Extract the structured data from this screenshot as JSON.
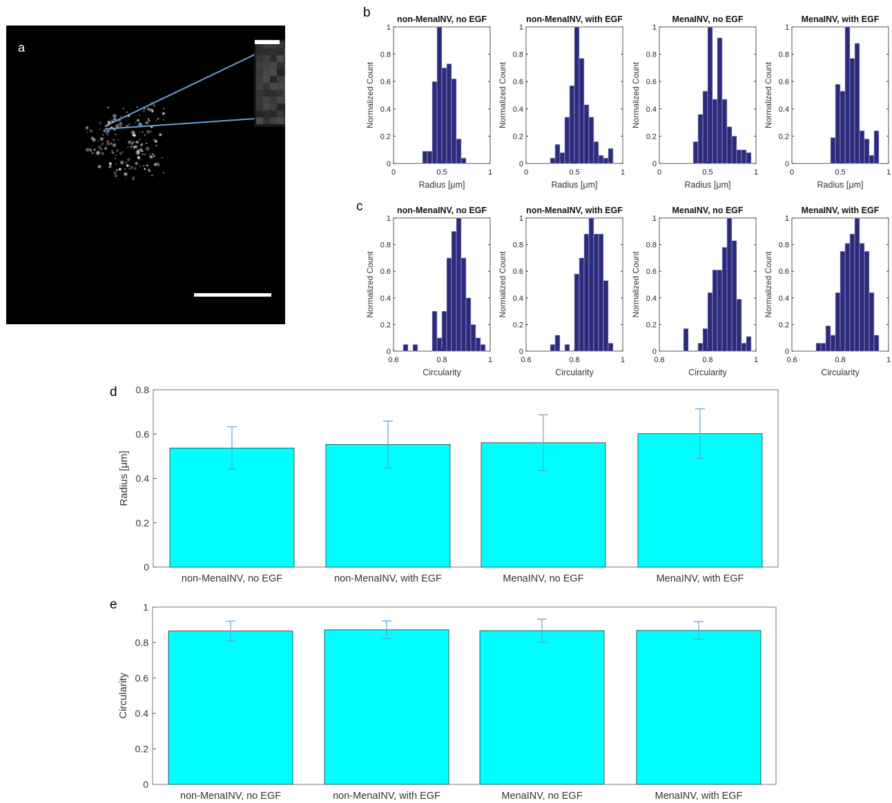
{
  "panels": {
    "a": "a",
    "b": "b",
    "c": "c",
    "d": "d",
    "e": "e"
  },
  "colors": {
    "hist_bar": "#2b2a7c",
    "hist_edge": "#b6b6d6",
    "summary_bar": "#00ffff",
    "error_bar": "#5aa0d8",
    "zoom_line": "#6a9fd8",
    "outline": "#c7c74a"
  },
  "chart_data": [
    {
      "id": "b1",
      "type": "bar",
      "panel": "b",
      "title": "non-MenaINV, no EGF",
      "xlabel": "Radius [μm]",
      "ylabel": "Normalized Count",
      "xlim": [
        0,
        1
      ],
      "ylim": [
        0,
        1
      ],
      "xticks": [
        "0",
        "0.5",
        "1"
      ],
      "yticks": [
        "0",
        "0.2",
        "0.4",
        "0.6",
        "0.8",
        "1"
      ],
      "bin_width": 0.05,
      "bins": [
        0.3,
        0.35,
        0.4,
        0.45,
        0.5,
        0.55,
        0.6,
        0.65,
        0.7,
        0.75
      ],
      "values": [
        0.09,
        0.09,
        0.6,
        1.0,
        0.7,
        0.73,
        0.62,
        0.18,
        0.04,
        0.0
      ]
    },
    {
      "id": "b2",
      "type": "bar",
      "panel": "b",
      "title": "non-MenaINV, with EGF",
      "xlabel": "Radius [μm]",
      "ylabel": "Normalized Count",
      "xlim": [
        0,
        1
      ],
      "ylim": [
        0,
        1
      ],
      "xticks": [
        "0",
        "0.5",
        "1"
      ],
      "yticks": [
        "0",
        "0.2",
        "0.4",
        "0.6",
        "0.8",
        "1"
      ],
      "bin_width": 0.05,
      "bins": [
        0.25,
        0.3,
        0.35,
        0.4,
        0.45,
        0.5,
        0.55,
        0.6,
        0.65,
        0.7,
        0.75,
        0.8,
        0.85
      ],
      "values": [
        0.04,
        0.14,
        0.08,
        0.34,
        0.57,
        1.0,
        0.77,
        0.43,
        0.34,
        0.16,
        0.06,
        0.04,
        0.11
      ]
    },
    {
      "id": "b3",
      "type": "bar",
      "panel": "b",
      "title": "MenaINV, no EGF",
      "xlabel": "Radius [μm]",
      "ylabel": "Normalized Count",
      "xlim": [
        0,
        1
      ],
      "ylim": [
        0,
        1
      ],
      "xticks": [
        "0",
        "0.5",
        "1"
      ],
      "yticks": [
        "0",
        "0.2",
        "0.4",
        "0.6",
        "0.8",
        "1"
      ],
      "bin_width": 0.05,
      "bins": [
        0.3,
        0.35,
        0.4,
        0.45,
        0.5,
        0.55,
        0.6,
        0.65,
        0.7,
        0.75,
        0.8,
        0.85,
        0.9
      ],
      "values": [
        0.0,
        0.16,
        0.36,
        0.53,
        1.0,
        0.47,
        0.92,
        0.47,
        0.27,
        0.2,
        0.1,
        0.1,
        0.08
      ]
    },
    {
      "id": "b4",
      "type": "bar",
      "panel": "b",
      "title": "MenaINV, with EGF",
      "xlabel": "Radius [μm]",
      "ylabel": "Normalized Count",
      "xlim": [
        0,
        1
      ],
      "ylim": [
        0,
        1
      ],
      "xticks": [
        "0",
        "0.5",
        "1"
      ],
      "yticks": [
        "0",
        "0.2",
        "0.4",
        "0.6",
        "0.8",
        "1"
      ],
      "bin_width": 0.05,
      "bins": [
        0.35,
        0.4,
        0.45,
        0.5,
        0.55,
        0.6,
        0.65,
        0.7,
        0.75,
        0.8,
        0.85,
        0.9
      ],
      "values": [
        0.0,
        0.19,
        0.58,
        0.53,
        1.0,
        0.77,
        0.88,
        0.24,
        0.18,
        0.06,
        0.24,
        0.0
      ]
    },
    {
      "id": "c1",
      "type": "bar",
      "panel": "c",
      "title": "non-MenaINV, no EGF",
      "xlabel": "Circularity",
      "ylabel": "Normalized Count",
      "xlim": [
        0.6,
        1
      ],
      "ylim": [
        0,
        1
      ],
      "xticks": [
        "0.6",
        "0.8",
        "1"
      ],
      "yticks": [
        "0",
        "0.2",
        "0.4",
        "0.6",
        "0.8",
        "1"
      ],
      "bin_width": 0.02,
      "bins": [
        0.62,
        0.64,
        0.66,
        0.68,
        0.7,
        0.72,
        0.74,
        0.76,
        0.78,
        0.8,
        0.82,
        0.84,
        0.86,
        0.88,
        0.9,
        0.92,
        0.94,
        0.96,
        0.98
      ],
      "values": [
        0.0,
        0.05,
        0.0,
        0.05,
        0.0,
        0.0,
        0.0,
        0.3,
        0.1,
        0.3,
        0.7,
        0.9,
        1.0,
        0.7,
        0.4,
        0.2,
        0.1,
        0.05,
        0.0
      ]
    },
    {
      "id": "c2",
      "type": "bar",
      "panel": "c",
      "title": "non-MenaINV, with EGF",
      "xlabel": "Circularity",
      "ylabel": "Normalized Count",
      "xlim": [
        0.6,
        1
      ],
      "ylim": [
        0,
        1
      ],
      "xticks": [
        "0.6",
        "0.8",
        "1"
      ],
      "yticks": [
        "0",
        "0.2",
        "0.4",
        "0.6",
        "0.8",
        "1"
      ],
      "bin_width": 0.02,
      "bins": [
        0.7,
        0.72,
        0.74,
        0.76,
        0.78,
        0.8,
        0.82,
        0.84,
        0.86,
        0.88,
        0.9,
        0.92,
        0.94,
        0.96
      ],
      "values": [
        0.05,
        0.12,
        0.0,
        0.05,
        0.0,
        0.58,
        0.7,
        0.88,
        1.0,
        0.88,
        0.88,
        0.53,
        0.06,
        0.0
      ]
    },
    {
      "id": "c3",
      "type": "bar",
      "panel": "c",
      "title": "MenaINV, no EGF",
      "xlabel": "Circularity",
      "ylabel": "Normalized Count",
      "xlim": [
        0.6,
        1
      ],
      "ylim": [
        0,
        1
      ],
      "xticks": [
        "0.6",
        "0.8",
        "1"
      ],
      "yticks": [
        "0",
        "0.2",
        "0.4",
        "0.6",
        "0.8",
        "1"
      ],
      "bin_width": 0.02,
      "bins": [
        0.7,
        0.72,
        0.74,
        0.76,
        0.78,
        0.8,
        0.82,
        0.84,
        0.86,
        0.88,
        0.9,
        0.92,
        0.94,
        0.96,
        0.98
      ],
      "values": [
        0.17,
        0.0,
        0.0,
        0.06,
        0.17,
        0.44,
        0.61,
        0.61,
        0.78,
        1.0,
        0.83,
        0.39,
        0.06,
        0.11,
        0.0
      ]
    },
    {
      "id": "c4",
      "type": "bar",
      "panel": "c",
      "title": "MenaINV, with EGF",
      "xlabel": "Circularity",
      "ylabel": "Normalized Count",
      "xlim": [
        0.6,
        1
      ],
      "ylim": [
        0,
        1
      ],
      "xticks": [
        "0.6",
        "0.8",
        "1"
      ],
      "yticks": [
        "0",
        "0.2",
        "0.4",
        "0.6",
        "0.8",
        "1"
      ],
      "bin_width": 0.02,
      "bins": [
        0.7,
        0.72,
        0.74,
        0.76,
        0.78,
        0.8,
        0.82,
        0.84,
        0.86,
        0.88,
        0.9,
        0.92,
        0.94,
        0.96
      ],
      "values": [
        0.06,
        0.06,
        0.19,
        0.12,
        0.44,
        0.75,
        0.81,
        0.88,
        1.0,
        0.81,
        0.75,
        0.44,
        0.12,
        0.0
      ]
    },
    {
      "id": "d",
      "type": "bar",
      "panel": "d",
      "title": "",
      "xlabel": "",
      "ylabel": "Radius [μm]",
      "categories": [
        "non-MenaINV, no EGF",
        "non-MenaINV, with EGF",
        "MenaINV, no EGF",
        "MenaINV, with EGF"
      ],
      "values": [
        0.537,
        0.553,
        0.561,
        0.602
      ],
      "errors": [
        0.096,
        0.106,
        0.126,
        0.112
      ],
      "ylim": [
        0,
        0.8
      ],
      "yticks": [
        "0",
        "0.2",
        "0.4",
        "0.6",
        "0.8"
      ]
    },
    {
      "id": "e",
      "type": "bar",
      "panel": "e",
      "title": "",
      "xlabel": "",
      "ylabel": "Circularity",
      "categories": [
        "non-MenaINV, no EGF",
        "non-MenaINV, with EGF",
        "MenaINV, no EGF",
        "MenaINV, with EGF"
      ],
      "values": [
        0.865,
        0.872,
        0.867,
        0.868
      ],
      "errors": [
        0.056,
        0.05,
        0.065,
        0.05
      ],
      "ylim": [
        0,
        1
      ],
      "yticks": [
        "0",
        "0.2",
        "0.4",
        "0.6",
        "0.8",
        "1"
      ]
    }
  ]
}
